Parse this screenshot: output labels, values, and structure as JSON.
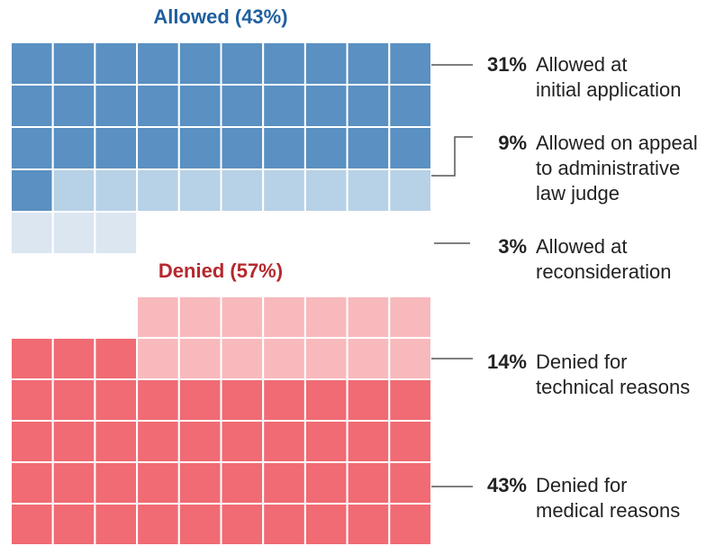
{
  "chart_data": {
    "type": "waffle",
    "columns": 10,
    "groups": [
      {
        "title": "Allowed (43%)",
        "title_color": "#1f5f9f",
        "fill": "top-down",
        "segments": [
          {
            "value": 31,
            "value_label": "31%",
            "label_lines": [
              "Allowed at",
              "initial application"
            ],
            "color": "#5a90c2"
          },
          {
            "value": 9,
            "value_label": "9%",
            "label_lines": [
              "Allowed on appeal",
              "to administrative",
              "law judge"
            ],
            "color": "#b7d1e6"
          },
          {
            "value": 3,
            "value_label": "3%",
            "label_lines": [
              "Allowed at",
              "reconsideration"
            ],
            "color": "#dbe6f1"
          }
        ]
      },
      {
        "title": "Denied (57%)",
        "title_color": "#b5282e",
        "fill": "bottom-up",
        "segments": [
          {
            "value": 43,
            "value_label": "43%",
            "label_lines": [
              "Denied for",
              "medical reasons"
            ],
            "color": "#f06b73"
          },
          {
            "value": 14,
            "value_label": "14%",
            "label_lines": [
              "Denied for",
              "technical reasons"
            ],
            "color": "#f8b9bc"
          }
        ]
      }
    ]
  }
}
